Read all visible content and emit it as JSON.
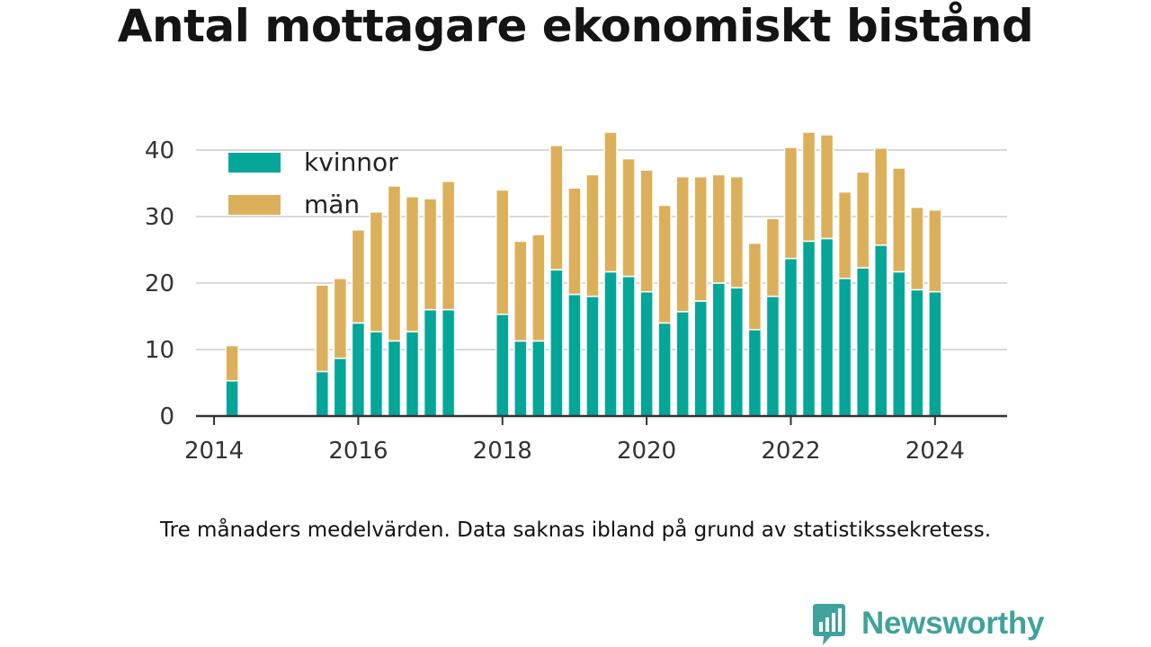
{
  "title": "Antal mottagare ekonomiskt bistånd",
  "note": "Tre månaders medelvärden. Data saknas ibland på grund av statistikssekretess.",
  "brand": {
    "name": "Newsworthy",
    "color": "#40a39b"
  },
  "colors": {
    "kvinnor": "#04a697",
    "man": "#dcb05b",
    "grid": "#d9d9d9",
    "axis": "#333333"
  },
  "chart_data": {
    "type": "bar",
    "stacked": true,
    "xlabel": "",
    "ylabel": "",
    "ylim": [
      0,
      45
    ],
    "y_ticks": [
      0,
      10,
      20,
      30,
      40
    ],
    "x_range": [
      2013.75,
      2025.0
    ],
    "x_ticks": [
      "2014",
      "2016",
      "2018",
      "2020",
      "2022",
      "2024"
    ],
    "grid": true,
    "legend": "top-left",
    "x": [
      "2014-Q2",
      "2015-Q3",
      "2015-Q4",
      "2016-Q1",
      "2016-Q2",
      "2016-Q3",
      "2016-Q4",
      "2017-Q1",
      "2017-Q2",
      "2018-Q1",
      "2018-Q2",
      "2018-Q3",
      "2018-Q4",
      "2019-Q1",
      "2019-Q2",
      "2019-Q3",
      "2019-Q4",
      "2020-Q1",
      "2020-Q2",
      "2020-Q3",
      "2020-Q4",
      "2021-Q1",
      "2021-Q2",
      "2021-Q3",
      "2021-Q4",
      "2022-Q1",
      "2022-Q2",
      "2022-Q3",
      "2022-Q4",
      "2023-Q1",
      "2023-Q2",
      "2023-Q3",
      "2023-Q4",
      "2024-Q1"
    ],
    "series": [
      {
        "name": "kvinnor",
        "color": "#04a697",
        "values": [
          5.3,
          6.7,
          8.7,
          14.0,
          12.7,
          11.3,
          12.7,
          16.0,
          16.0,
          15.3,
          11.3,
          11.3,
          22.0,
          18.3,
          18.0,
          21.7,
          21.0,
          18.7,
          14.0,
          15.7,
          17.3,
          20.0,
          19.3,
          13.0,
          18.0,
          23.7,
          26.3,
          26.7,
          20.7,
          22.3,
          25.7,
          21.7,
          19.0,
          18.7
        ]
      },
      {
        "name": "män",
        "color": "#dcb05b",
        "values": [
          5.3,
          13.0,
          12.0,
          14.0,
          18.0,
          23.3,
          20.3,
          16.7,
          19.3,
          18.7,
          15.0,
          16.0,
          18.7,
          16.0,
          18.3,
          21.0,
          17.7,
          18.3,
          17.7,
          20.3,
          18.7,
          16.3,
          16.7,
          13.0,
          11.7,
          16.7,
          16.4,
          15.6,
          13.0,
          14.4,
          14.6,
          15.6,
          12.4,
          12.3
        ]
      }
    ]
  }
}
